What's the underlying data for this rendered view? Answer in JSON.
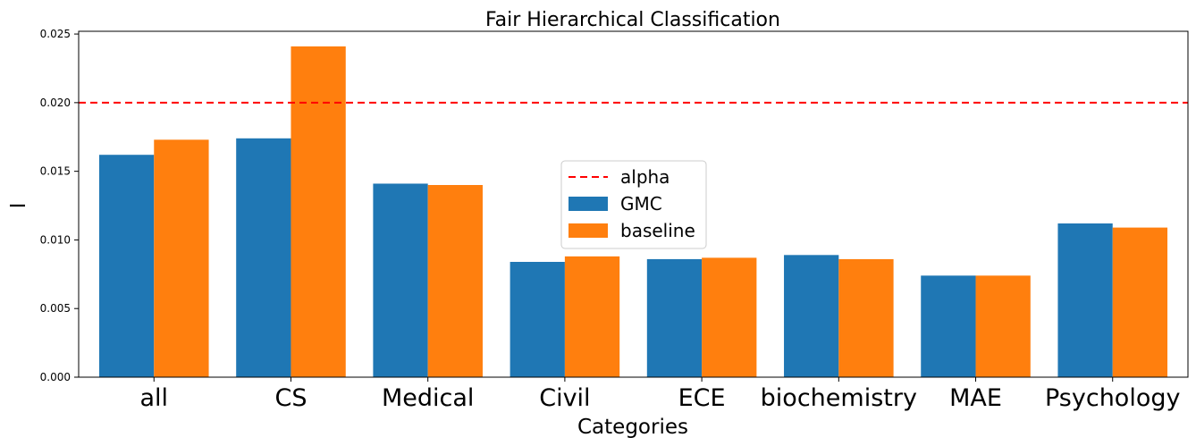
{
  "chart_data": {
    "type": "bar",
    "title": "Fair Hierarchical Classification",
    "xlabel": "Categories",
    "ylabel": "I",
    "categories": [
      "all",
      "CS",
      "Medical",
      "Civil",
      "ECE",
      "biochemistry",
      "MAE",
      "Psychology"
    ],
    "series": [
      {
        "name": "GMC",
        "color": "#1f77b4",
        "values": [
          0.0162,
          0.0174,
          0.0141,
          0.0084,
          0.0086,
          0.0089,
          0.0074,
          0.0112
        ]
      },
      {
        "name": "baseline",
        "color": "#ff7f0e",
        "values": [
          0.0173,
          0.0241,
          0.014,
          0.0088,
          0.0087,
          0.0086,
          0.0074,
          0.0109
        ]
      }
    ],
    "reference_line": {
      "name": "alpha",
      "value": 0.02,
      "color": "#ff0000",
      "style": "dashed"
    },
    "ylim": [
      0,
      0.0252
    ],
    "yticks": [
      "0.000",
      "0.005",
      "0.010",
      "0.015",
      "0.020",
      "0.025"
    ],
    "ytick_values": [
      0,
      0.005,
      0.01,
      0.015,
      0.02,
      0.025
    ],
    "grid": false,
    "legend_position": "center"
  }
}
